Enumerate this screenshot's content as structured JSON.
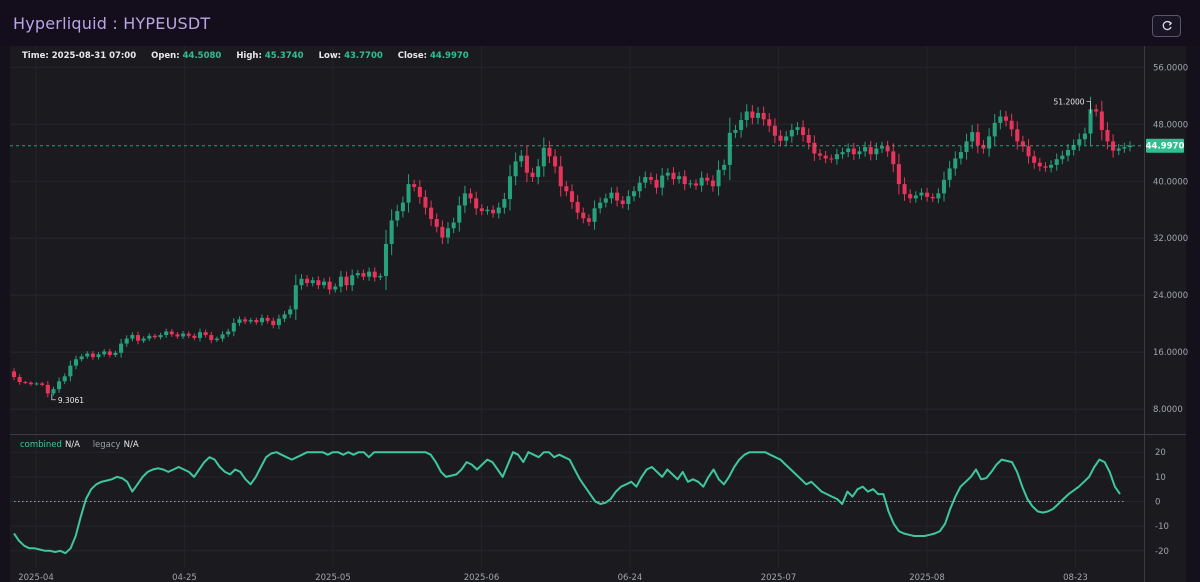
{
  "header": {
    "title": "Hyperliquid : HYPEUSDT"
  },
  "ohlc_legend": {
    "time_label": "Time:",
    "time_value": "2025-08-31 07:00",
    "open_label": "Open:",
    "open_value": "44.5080",
    "high_label": "High:",
    "high_value": "45.3740",
    "low_label": "Low:",
    "low_value": "43.7700",
    "close_label": "Close:",
    "close_value": "44.9970"
  },
  "indicator_legend": {
    "combined_label": "combined",
    "combined_value": "N/A",
    "legacy_label": "legacy",
    "legacy_value": "N/A"
  },
  "colors": {
    "up": "#26a17b",
    "down": "#e8345a",
    "indicator": "#3fc79c",
    "last_price_badge": "#2fbf8f"
  },
  "chart_data": [
    {
      "type": "candlestick",
      "title": "",
      "x_tick_labels": [
        "2025-04",
        "04-25",
        "2025-05",
        "2025-06",
        "06-24",
        "2025-07",
        "2025-08",
        "08-23"
      ],
      "y_ticks": [
        8,
        16,
        24,
        32,
        40,
        48,
        56
      ],
      "y_tick_labels": [
        "8.0000",
        "16.0000",
        "24.0000",
        "32.0000",
        "40.0000",
        "48.0000",
        "56.0000"
      ],
      "ylim": [
        4.5,
        59.0
      ],
      "last_price": 44.997,
      "last_price_label": "44.9970",
      "max_annotation": {
        "label": "51.2000",
        "value": 51.2
      },
      "min_annotation": {
        "label": "9.3061",
        "value": 9.3061
      },
      "close_series": [
        12.5,
        11.8,
        11.7,
        11.5,
        11.6,
        11.4,
        10.2,
        10.8,
        11.9,
        12.6,
        14.1,
        15.0,
        15.4,
        15.8,
        15.3,
        15.7,
        16.1,
        15.6,
        15.9,
        17.2,
        17.9,
        18.4,
        17.6,
        17.9,
        18.3,
        18.1,
        18.4,
        18.9,
        18.5,
        18.2,
        18.6,
        18.3,
        18.0,
        18.8,
        18.4,
        17.7,
        17.9,
        18.5,
        18.9,
        20.1,
        20.6,
        20.3,
        20.5,
        20.2,
        20.8,
        20.4,
        19.8,
        20.7,
        21.3,
        22.0,
        25.4,
        26.3,
        25.7,
        26.1,
        25.4,
        25.9,
        24.8,
        25.2,
        26.6,
        25.4,
        26.8,
        27.1,
        26.6,
        27.3,
        26.5,
        26.7,
        31.2,
        34.5,
        35.8,
        37.0,
        39.6,
        39.2,
        37.8,
        36.3,
        34.7,
        33.6,
        32.1,
        33.4,
        34.2,
        36.6,
        38.3,
        37.6,
        36.2,
        35.8,
        36.0,
        35.5,
        36.3,
        37.5,
        40.7,
        42.8,
        43.6,
        41.2,
        40.6,
        42.1,
        44.7,
        43.5,
        42.1,
        39.3,
        38.6,
        37.1,
        35.6,
        34.8,
        34.3,
        36.2,
        37.0,
        37.6,
        38.4,
        37.3,
        36.8,
        37.9,
        38.6,
        39.8,
        40.6,
        40.2,
        39.1,
        40.8,
        41.2,
        40.3,
        40.7,
        39.6,
        39.7,
        39.4,
        40.5,
        40.1,
        39.3,
        41.6,
        42.3,
        46.8,
        47.2,
        48.6,
        49.8,
        48.9,
        49.6,
        48.7,
        47.8,
        46.4,
        45.7,
        46.3,
        47.2,
        47.6,
        46.5,
        45.4,
        43.9,
        43.6,
        43.2,
        43.1,
        43.8,
        44.1,
        44.6,
        43.8,
        44.2,
        44.8,
        43.8,
        44.6,
        44.9,
        44.2,
        42.4,
        39.6,
        38.2,
        37.6,
        38.0,
        38.4,
        37.8,
        37.6,
        38.3,
        40.2,
        41.8,
        43.2,
        44.1,
        45.6,
        46.9,
        45.1,
        44.6,
        46.3,
        48.2,
        49.1,
        48.5,
        47.3,
        45.6,
        44.9,
        43.5,
        42.6,
        42.1,
        41.9,
        42.3,
        43.1,
        43.6,
        44.4,
        45.1,
        45.9,
        46.7,
        50.1,
        49.8,
        47.2,
        45.6,
        44.3,
        44.6,
        44.8,
        44.997
      ]
    },
    {
      "type": "line",
      "title": "",
      "series": [
        {
          "name": "combined",
          "values": [
            -13,
            -16,
            -18,
            -19,
            -19,
            -19.5,
            -20,
            -20,
            -20.5,
            -20,
            -21,
            -19,
            -14,
            -6,
            1,
            5,
            7,
            8,
            8.5,
            9,
            10,
            9.5,
            8,
            4,
            7,
            10,
            12,
            13,
            13.5,
            13,
            12,
            13,
            14,
            13,
            12,
            10,
            13,
            16,
            18,
            17,
            14,
            12,
            11,
            13,
            12,
            9,
            7,
            10,
            14,
            18,
            19.5,
            20,
            19,
            18,
            17,
            18,
            19,
            20,
            20,
            20,
            20,
            19,
            20,
            20,
            19,
            20,
            19,
            20,
            20,
            18,
            20,
            20,
            20,
            20,
            20,
            20,
            20,
            20,
            20,
            20,
            20,
            19,
            16,
            12,
            10,
            10.5,
            11,
            13,
            16,
            15,
            13,
            15,
            17,
            16,
            13,
            10,
            15,
            20,
            19,
            16,
            20,
            19,
            18,
            20,
            20,
            18,
            19,
            18,
            17,
            13,
            9,
            6,
            3,
            0,
            -1,
            -0.5,
            1,
            4,
            6,
            7,
            8,
            6,
            10,
            13,
            14,
            12,
            10,
            13,
            11,
            9,
            12,
            8,
            9,
            8,
            6,
            10,
            13,
            9,
            7,
            10,
            14,
            17,
            19,
            20,
            20,
            20,
            20,
            19,
            18,
            17,
            15,
            13,
            11,
            9,
            7,
            8,
            6,
            4,
            3,
            2,
            1,
            -1,
            4,
            2,
            5,
            6,
            4,
            5,
            3,
            3,
            -4,
            -9,
            -12,
            -13,
            -13.5,
            -14,
            -14,
            -14,
            -13.5,
            -13,
            -12,
            -9,
            -3,
            2,
            6,
            8,
            10,
            13,
            9,
            9.5,
            12,
            15,
            17,
            16.5,
            16,
            12,
            6,
            1,
            -2,
            -4,
            -4.5,
            -4,
            -3,
            -1,
            1,
            3,
            4.5,
            6,
            8,
            10,
            14,
            17,
            16,
            12,
            6,
            3
          ]
        },
        {
          "name": "legacy",
          "values": []
        }
      ],
      "y_ticks": [
        -20,
        -10,
        0,
        10,
        20
      ],
      "y_tick_labels": [
        "-20",
        "-10",
        "0",
        "10",
        "20"
      ],
      "ylim": [
        -27,
        27
      ]
    }
  ]
}
